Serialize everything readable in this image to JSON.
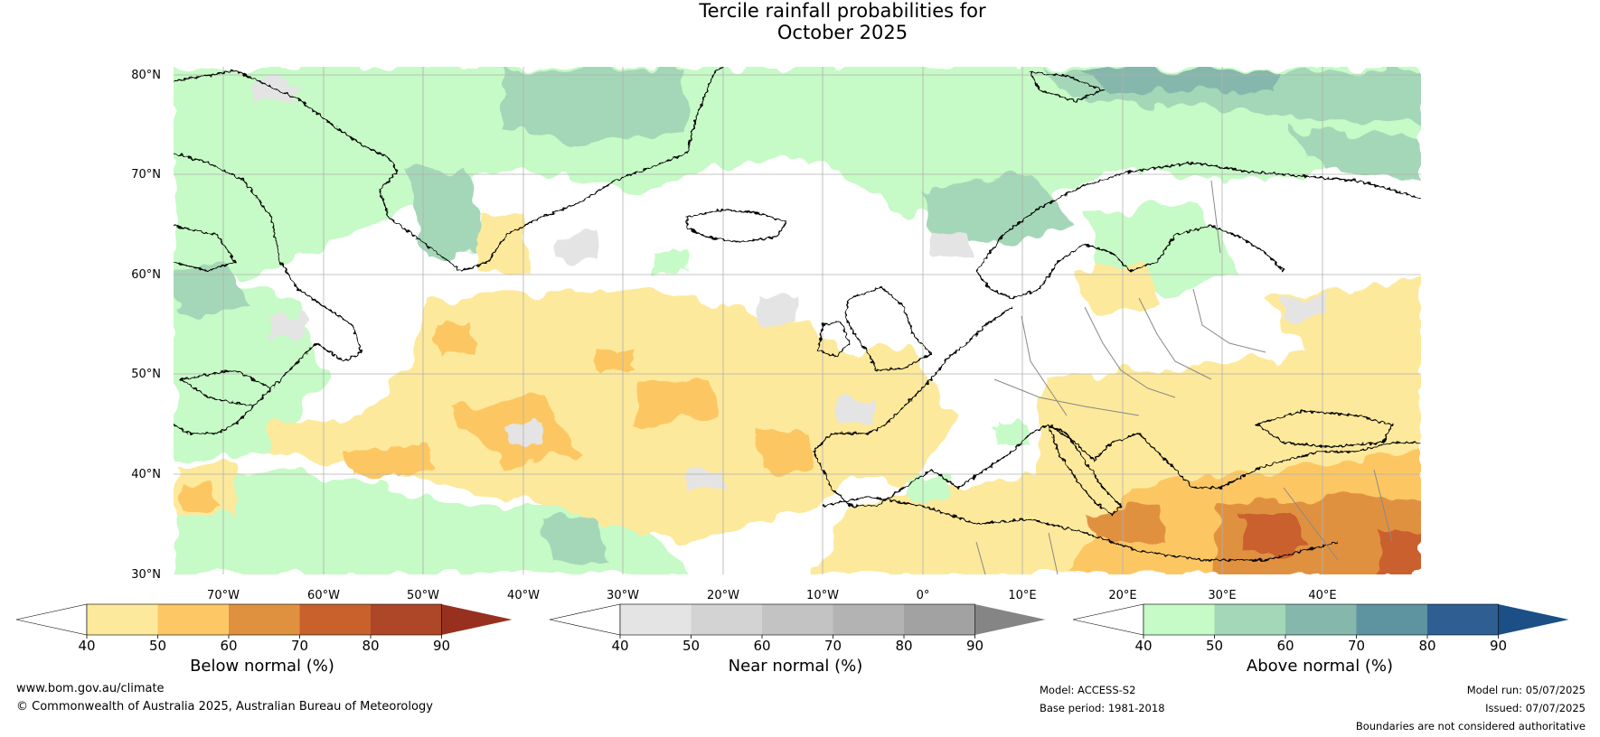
{
  "title": {
    "line1": "Tercile rainfall probabilities for",
    "line2": "October 2025"
  },
  "map": {
    "lat_labels": [
      "80°N",
      "70°N",
      "60°N",
      "50°N",
      "40°N",
      "30°N"
    ],
    "lon_labels": [
      "70°W",
      "60°W",
      "50°W",
      "40°W",
      "30°W",
      "20°W",
      "10°W",
      "0°",
      "10°E",
      "20°E",
      "30°E",
      "40°E"
    ],
    "land_outline_color": "#000000",
    "border_color": "#888888",
    "grid_color": "#b0b0b0"
  },
  "colorbars": [
    {
      "title": "Below normal (%)",
      "ticks": [
        "40",
        "50",
        "60",
        "70",
        "80",
        "90"
      ],
      "colors": [
        "#ffffff",
        "#fde99b",
        "#fcc764",
        "#e0913f",
        "#c9612d",
        "#ad4727",
        "#97301f"
      ]
    },
    {
      "title": "Near normal (%)",
      "ticks": [
        "40",
        "50",
        "60",
        "70",
        "80",
        "90"
      ],
      "colors": [
        "#ffffff",
        "#e4e4e4",
        "#d3d3d3",
        "#c3c3c3",
        "#b3b3b3",
        "#a2a2a2",
        "#858585"
      ]
    },
    {
      "title": "Above normal (%)",
      "ticks": [
        "40",
        "50",
        "60",
        "70",
        "80",
        "90"
      ],
      "colors": [
        "#ffffff",
        "#c6fac6",
        "#a4d7b7",
        "#86b7ac",
        "#5e93a0",
        "#2f5f92",
        "#1b4f86"
      ]
    }
  ],
  "footer": {
    "website": "www.bom.gov.au/climate",
    "copyright": "© Commonwealth of Australia 2025, Australian Bureau of Meteorology",
    "model": "Model: ACCESS-S2",
    "base_period": "Base period: 1981-2018",
    "model_run": "Model run: 05/07/2025",
    "issued": "Issued: 07/07/2025",
    "disclaimer": "Boundaries are not considered authoritative"
  }
}
